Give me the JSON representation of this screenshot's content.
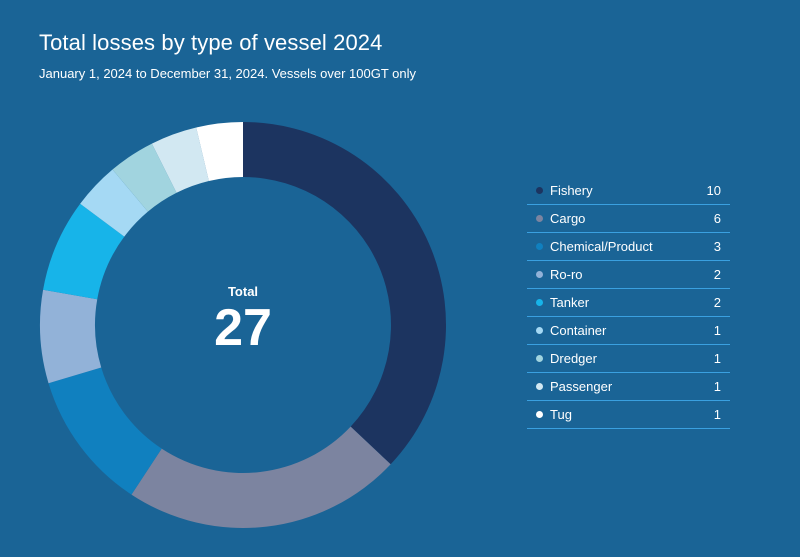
{
  "chart_data": {
    "type": "pie",
    "title": "Total losses by type of vessel 2024",
    "subtitle": "January 1, 2024 to December 31, 2024. Vessels over 100GT only",
    "center_label": "Total",
    "center_value": "27",
    "categories": [
      "Fishery",
      "Cargo",
      "Chemical/Product",
      "Ro-ro",
      "Tanker",
      "Container",
      "Dredger",
      "Passenger",
      "Tug"
    ],
    "values": [
      10,
      6,
      3,
      2,
      2,
      1,
      1,
      1,
      1
    ],
    "colors": [
      "#1c3460",
      "#7c84a0",
      "#1080bf",
      "#92b2d8",
      "#17b4e9",
      "#a5d9f4",
      "#a1d4df",
      "#d2e8f2",
      "#ffffff"
    ],
    "legend_position": "right"
  }
}
